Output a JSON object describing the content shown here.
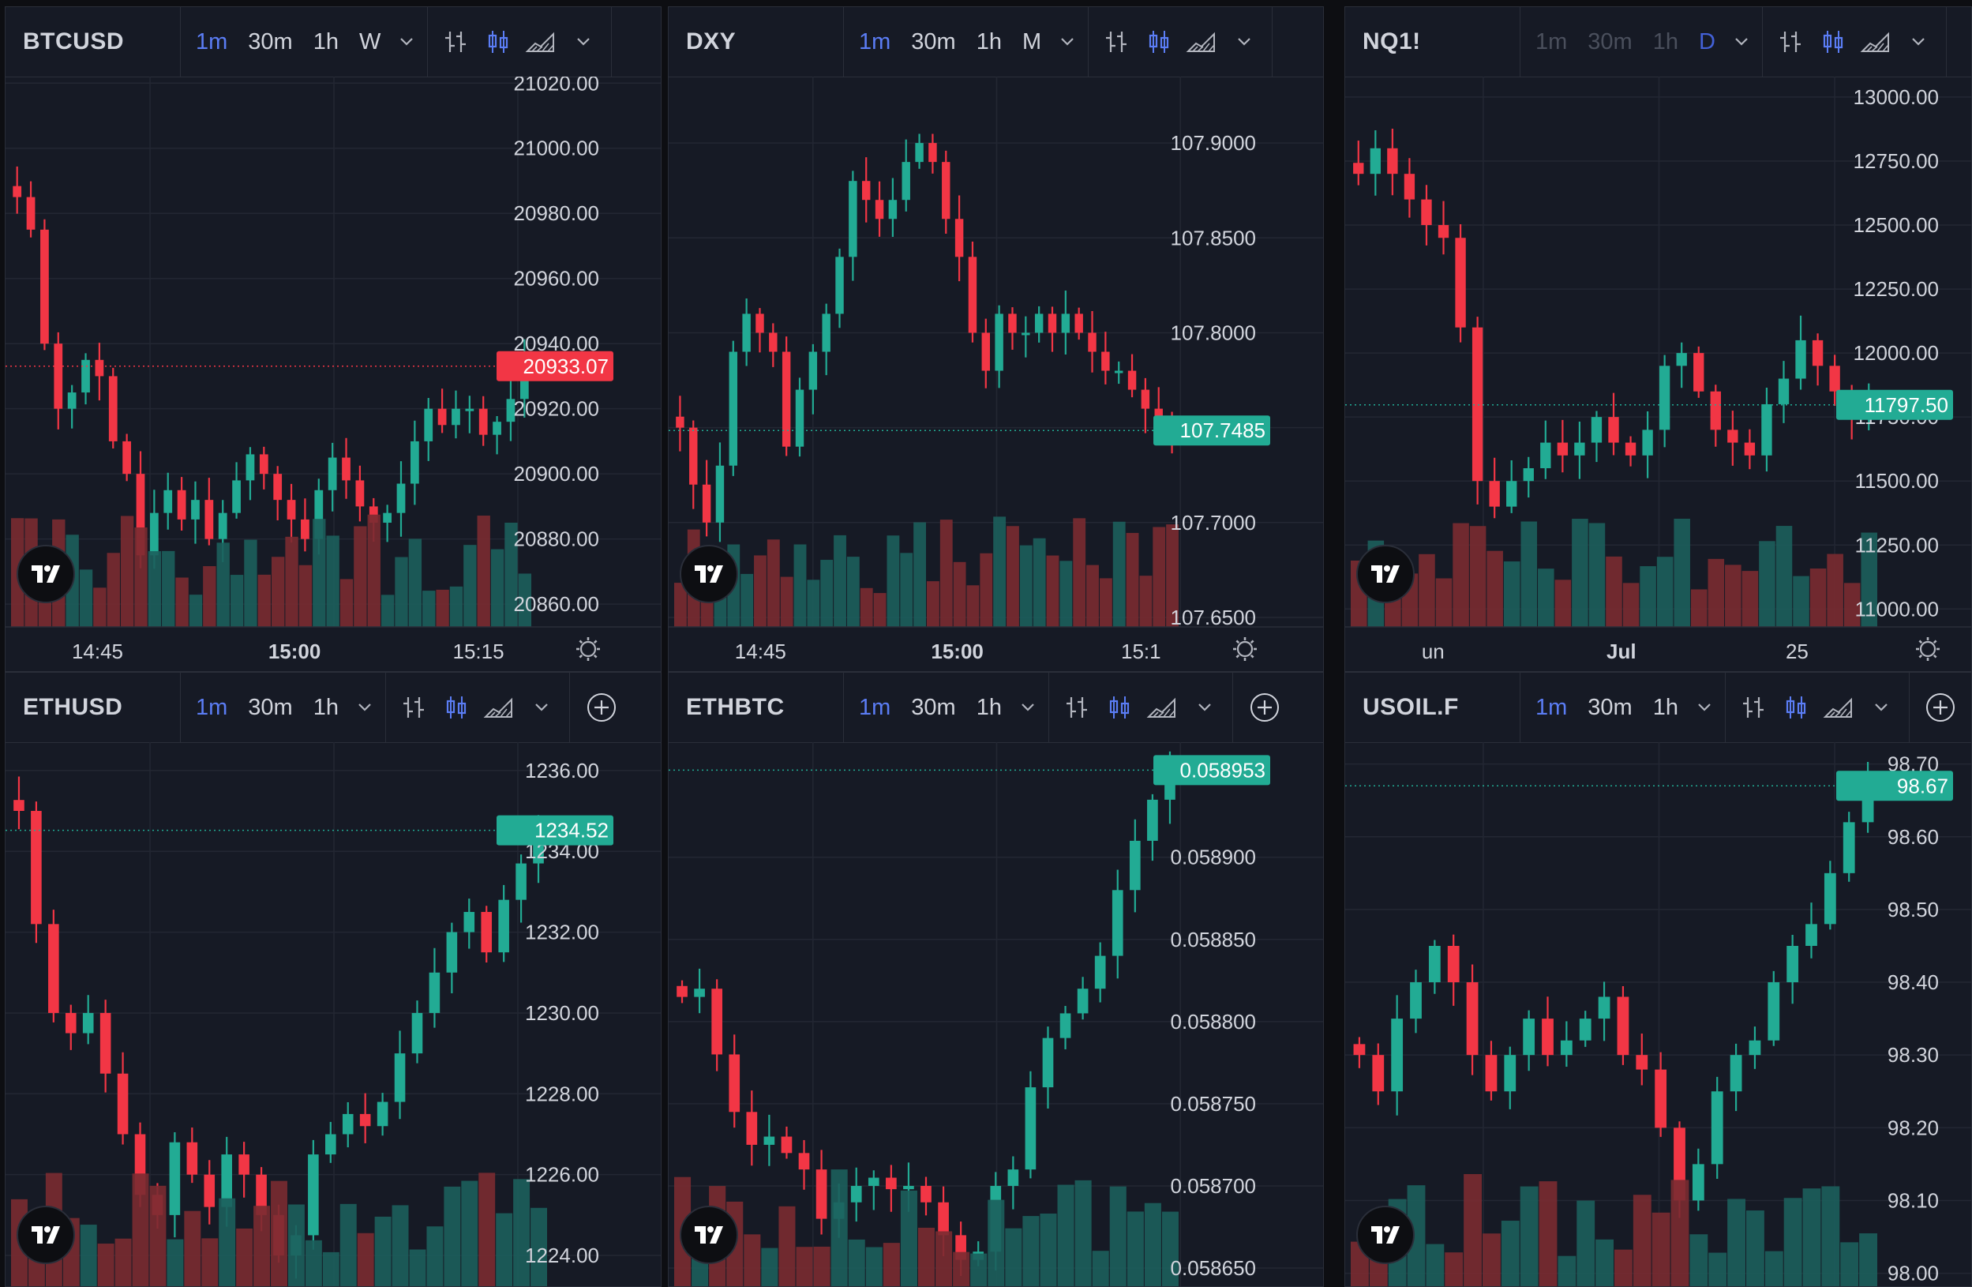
{
  "colors": {
    "up": "#22ab94",
    "down": "#f23645",
    "up_volume": "#1c5f5c",
    "down_volume": "#7a2b31",
    "grid": "#232733",
    "axis_text": "#d1d4dc",
    "active_interval": "#5b7df5",
    "background": "#161a25"
  },
  "panels": [
    {
      "symbol": "BTCUSD",
      "intervals": [
        {
          "label": "1m",
          "state": "active"
        },
        {
          "label": "30m",
          "state": "normal"
        },
        {
          "label": "1h",
          "state": "normal"
        },
        {
          "label": "W",
          "state": "normal"
        }
      ],
      "y_ticks": [
        "21020.00",
        "21000.00",
        "20980.00",
        "20960.00",
        "20940.00",
        "20920.00",
        "20900.00",
        "20880.00",
        "20860.00"
      ],
      "price_tag": "20933.07",
      "price_tag_direction": "down",
      "x_ticks": [
        {
          "label": "14:45",
          "bold": false
        },
        {
          "label": "15:00",
          "bold": true
        },
        {
          "label": "15:15",
          "bold": false
        }
      ],
      "show_gear": true,
      "show_plus": false,
      "chart_data": {
        "type": "candlestick",
        "y_range": [
          20853,
          21022
        ],
        "last_price": 20933.07,
        "close_series": [
          20985,
          20975,
          20940,
          20920,
          20925,
          20935,
          20930,
          20910,
          20900,
          20875,
          20888,
          20895,
          20886,
          20892,
          20880,
          20888,
          20898,
          20906,
          20900,
          20892,
          20886,
          20880,
          20895,
          20905,
          20898,
          20890,
          20885,
          20888,
          20897,
          20910,
          20920,
          20915,
          20920,
          20920,
          20912,
          20916,
          20923,
          20934
        ]
      }
    },
    {
      "symbol": "DXY",
      "intervals": [
        {
          "label": "1m",
          "state": "active"
        },
        {
          "label": "30m",
          "state": "normal"
        },
        {
          "label": "1h",
          "state": "normal"
        },
        {
          "label": "M",
          "state": "normal"
        }
      ],
      "y_ticks": [
        "107.9000",
        "107.8500",
        "107.8000",
        "107.7500",
        "107.7000",
        "107.6500"
      ],
      "price_tag": "107.7485",
      "price_tag_direction": "up",
      "x_ticks": [
        {
          "label": "14:45",
          "bold": false
        },
        {
          "label": "15:00",
          "bold": true
        },
        {
          "label": "15:1",
          "bold": false
        }
      ],
      "show_gear": true,
      "show_plus": false,
      "chart_data": {
        "type": "candlestick",
        "y_range": [
          107.645,
          107.935
        ],
        "last_price": 107.7485,
        "close_series": [
          107.75,
          107.72,
          107.7,
          107.73,
          107.79,
          107.81,
          107.8,
          107.79,
          107.74,
          107.77,
          107.79,
          107.81,
          107.84,
          107.88,
          107.87,
          107.86,
          107.87,
          107.89,
          107.9,
          107.89,
          107.86,
          107.84,
          107.8,
          107.78,
          107.81,
          107.8,
          107.8,
          107.81,
          107.8,
          107.81,
          107.8,
          107.79,
          107.78,
          107.78,
          107.77,
          107.76,
          107.75,
          107.7485
        ]
      }
    },
    {
      "symbol": "NQ1!",
      "intervals": [
        {
          "label": "1m",
          "state": "dim"
        },
        {
          "label": "30m",
          "state": "dim"
        },
        {
          "label": "1h",
          "state": "dim"
        },
        {
          "label": "D",
          "state": "dimactive"
        }
      ],
      "y_ticks": [
        "13000.00",
        "12750.00",
        "12500.00",
        "12250.00",
        "12000.00",
        "11750.00",
        "11500.00",
        "11250.00",
        "11000.00"
      ],
      "price_tag": "11797.50",
      "price_tag_direction": "up",
      "x_ticks": [
        {
          "label": "un",
          "bold": false
        },
        {
          "label": "Jul",
          "bold": true
        },
        {
          "label": "25",
          "bold": false
        }
      ],
      "show_gear": true,
      "show_plus": false,
      "chart_data": {
        "type": "candlestick",
        "y_range": [
          10930,
          13080
        ],
        "last_price": 11797.5,
        "close_series": [
          12700,
          12800,
          12700,
          12600,
          12500,
          12450,
          12100,
          11500,
          11400,
          11500,
          11550,
          11650,
          11600,
          11650,
          11750,
          11650,
          11600,
          11700,
          11950,
          12000,
          11850,
          11700,
          11650,
          11600,
          11800,
          11900,
          12050,
          11950,
          11850,
          11750,
          11800
        ]
      }
    },
    {
      "symbol": "ETHUSD",
      "intervals": [
        {
          "label": "1m",
          "state": "active"
        },
        {
          "label": "30m",
          "state": "normal"
        },
        {
          "label": "1h",
          "state": "normal"
        }
      ],
      "y_ticks": [
        "1236.00",
        "1234.00",
        "1232.00",
        "1230.00",
        "1228.00",
        "1226.00",
        "1224.00"
      ],
      "price_tag": "1234.52",
      "price_tag_direction": "up",
      "x_ticks": [],
      "show_gear": false,
      "show_plus": true,
      "chart_data": {
        "type": "candlestick",
        "y_range": [
          1223.2,
          1236.7
        ],
        "last_price": 1234.52,
        "close_series": [
          1235.0,
          1232.2,
          1230.0,
          1229.5,
          1230.0,
          1228.5,
          1227.0,
          1225.5,
          1225.0,
          1226.8,
          1226.0,
          1225.2,
          1226.5,
          1226.0,
          1225.0,
          1224.0,
          1224.5,
          1226.5,
          1227.0,
          1227.5,
          1227.2,
          1227.8,
          1229.0,
          1230.0,
          1231.0,
          1232.0,
          1232.5,
          1231.5,
          1232.8,
          1233.7,
          1234.5
        ]
      }
    },
    {
      "symbol": "ETHBTC",
      "intervals": [
        {
          "label": "1m",
          "state": "active"
        },
        {
          "label": "30m",
          "state": "normal"
        },
        {
          "label": "1h",
          "state": "normal"
        }
      ],
      "y_ticks": [
        "0.058900",
        "0.058850",
        "0.058800",
        "0.058750",
        "0.058700",
        "0.058650"
      ],
      "price_tag": "0.058953",
      "price_tag_direction": "up",
      "x_ticks": [],
      "show_gear": false,
      "show_plus": true,
      "chart_data": {
        "type": "candlestick",
        "y_range": [
          0.058638,
          0.05897
        ],
        "last_price": 0.058953,
        "close_series": [
          0.058815,
          0.05882,
          0.05878,
          0.058745,
          0.058725,
          0.05873,
          0.05872,
          0.05871,
          0.05868,
          0.05869,
          0.0587,
          0.058705,
          0.058698,
          0.0587,
          0.05869,
          0.05867,
          0.058655,
          0.05866,
          0.0587,
          0.05871,
          0.05876,
          0.05879,
          0.058805,
          0.05882,
          0.05884,
          0.05888,
          0.05891,
          0.058935,
          0.058953
        ]
      }
    },
    {
      "symbol": "USOIL.F",
      "intervals": [
        {
          "label": "1m",
          "state": "active"
        },
        {
          "label": "30m",
          "state": "normal"
        },
        {
          "label": "1h",
          "state": "normal"
        }
      ],
      "y_ticks": [
        "98.70",
        "98.60",
        "98.50",
        "98.40",
        "98.30",
        "98.20",
        "98.10",
        "98.00"
      ],
      "price_tag": "98.67",
      "price_tag_direction": "up",
      "x_ticks": [],
      "show_gear": false,
      "show_plus": true,
      "chart_data": {
        "type": "candlestick",
        "y_range": [
          97.98,
          98.73
        ],
        "last_price": 98.67,
        "close_series": [
          98.3,
          98.25,
          98.35,
          98.4,
          98.45,
          98.4,
          98.3,
          98.25,
          98.3,
          98.35,
          98.3,
          98.32,
          98.35,
          98.38,
          98.3,
          98.28,
          98.2,
          98.1,
          98.15,
          98.25,
          98.3,
          98.32,
          98.4,
          98.45,
          98.48,
          98.55,
          98.62,
          98.67
        ]
      }
    }
  ]
}
